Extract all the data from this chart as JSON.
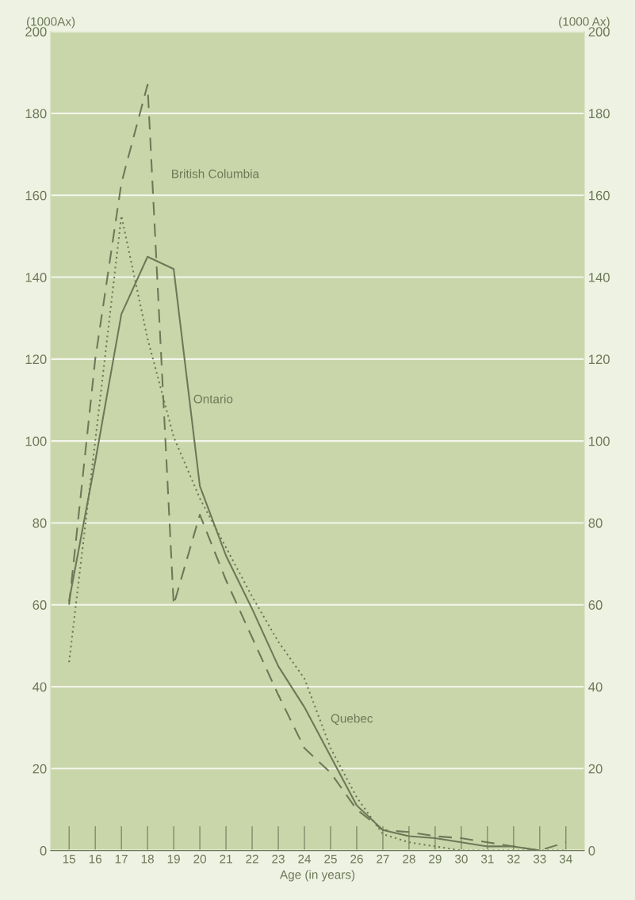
{
  "chart_data": {
    "type": "line",
    "xlabel": "Age (in years)",
    "ylabel": "(1000Ax)",
    "y2label": "(1000 Ax)",
    "categories": [
      "15",
      "16",
      "17",
      "18",
      "19",
      "20",
      "21",
      "22",
      "23",
      "24",
      "25",
      "26",
      "27",
      "28",
      "29",
      "30",
      "31",
      "32",
      "33",
      "34"
    ],
    "series": [
      {
        "name": "Ontario",
        "color": "#6e7858",
        "line_style": "solid",
        "values": [
          61,
          95,
          131,
          145,
          142,
          89,
          72,
          59,
          45,
          35,
          23,
          11,
          5,
          3.5,
          3,
          2,
          1,
          1,
          0,
          null
        ]
      },
      {
        "name": "British Columbia",
        "color": "#6e7858",
        "line_style": "dashed",
        "values": [
          60,
          120,
          163,
          187,
          60,
          82,
          66,
          52,
          38,
          25,
          19,
          10,
          5,
          4.5,
          3.5,
          3,
          2,
          1,
          0,
          2
        ]
      },
      {
        "name": "Quebec",
        "color": "#6e7858",
        "line_style": "dotted",
        "values": [
          46,
          100,
          155,
          125,
          101,
          86,
          74,
          62,
          51,
          42,
          25,
          13,
          4,
          2,
          1,
          0,
          0,
          0,
          0,
          0
        ]
      }
    ],
    "ylim": [
      0,
      200
    ],
    "yticks": [
      0,
      20,
      40,
      60,
      80,
      100,
      120,
      140,
      160,
      180,
      200
    ],
    "y2lim": [
      0,
      200
    ],
    "y2ticks": [
      0,
      20,
      40,
      60,
      80,
      100,
      120,
      140,
      160,
      180,
      200
    ],
    "grid": "y",
    "marker": "none"
  }
}
